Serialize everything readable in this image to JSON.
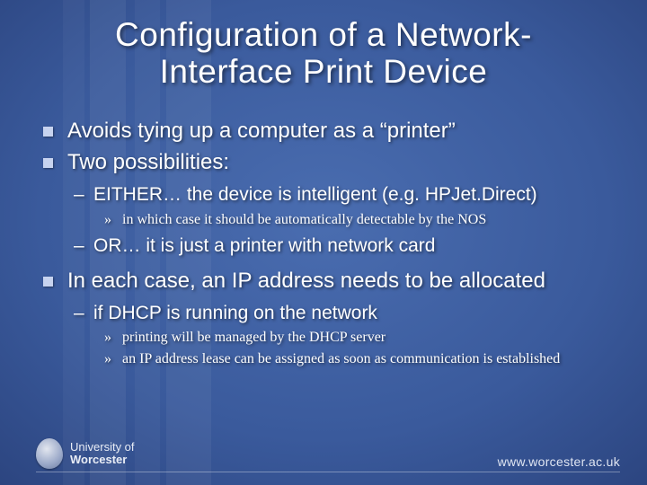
{
  "title_line1": "Configuration of a Network-",
  "title_line2": "Interface Print Device",
  "bullets": {
    "b1": "Avoids tying up a computer as a “printer”",
    "b2": "Two possibilities:",
    "b2_1": "EITHER… the device is intelligent (e.g. HPJet.Direct)",
    "b2_1_1": "in which case it should be automatically detectable by the NOS",
    "b2_2": "OR… it is just a printer with network card",
    "b3": "In each case, an IP address needs to be allocated",
    "b3_1": "if DHCP is running on the network",
    "b3_1_1": "printing will be managed by the DHCP server",
    "b3_1_2": "an IP address lease can be assigned as soon as communication is established"
  },
  "footer": {
    "uni_line1": "University of",
    "uni_line2": "Worcester",
    "url": "www.worcester.ac.uk"
  },
  "style": {
    "slide_width": 720,
    "slide_height": 540,
    "background_gradient": [
      "#4a6db0",
      "#3a5a9c",
      "#283f78",
      "#1a2850"
    ],
    "title_fontsize": 37,
    "l1_fontsize": 24,
    "l2_fontsize": 21,
    "l3_fontsize": 16,
    "text_color": "#ffffff",
    "l1_bullet_color": "#c7d3ef",
    "shadow_color": "rgba(0,0,0,0.55)",
    "footer_line_color": "rgba(255,255,255,0.35)",
    "url_color": "#dfe5f2",
    "logo_text_color": "#e8ecf5",
    "band_color": "rgba(255,255,255,0.05)",
    "l3_font_family": "Times New Roman"
  }
}
